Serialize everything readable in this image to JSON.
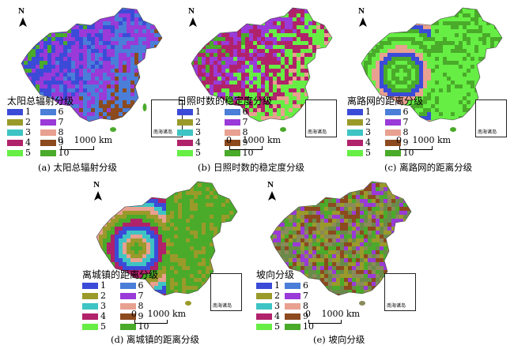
{
  "class_colors": {
    "1": "#3b4bd8",
    "2": "#9a9a2a",
    "3": "#3ec4c4",
    "4": "#b0226a",
    "5": "#66ee44",
    "6": "#4a7ed8",
    "7": "#9a3ad8",
    "8": "#e8a090",
    "9": "#8c4a1e",
    "10": "#4aaa2a"
  },
  "panels": [
    {
      "id": "a",
      "caption": "(a) 太阳总辐射分级",
      "legend_title": "太阳总辐射分级",
      "classes": [
        "1",
        "6",
        "2",
        "7",
        "3",
        "8",
        "4",
        "9",
        "5",
        "10"
      ],
      "north_label": "N",
      "scale_zero": "0",
      "scale_label": "1000 km",
      "inset_label": "南海诸岛",
      "palette": [
        "#66ee44",
        "#4aaa2a",
        "#3b4bd8",
        "#9a3ad8",
        "#4a7ed8",
        "#8c4a1e"
      ]
    },
    {
      "id": "b",
      "caption": "(b) 日照时数的稳定度分级",
      "legend_title": "日照时数的稳定度分级",
      "classes": [
        "1",
        "6",
        "2",
        "7",
        "3",
        "8",
        "4",
        "9",
        "5",
        "10"
      ],
      "north_label": "N",
      "scale_zero": "0",
      "scale_label": "1000 km",
      "inset_label": "南海诸岛",
      "palette": [
        "#8c4a1e",
        "#4aaa2a",
        "#9a3ad8",
        "#b0226a",
        "#66ee44",
        "#e8a090"
      ]
    },
    {
      "id": "c",
      "caption": "(c) 离路网的距离分级",
      "legend_title": "离路网的距离分级",
      "classes": [
        "1",
        "6",
        "2",
        "7",
        "3",
        "8",
        "4",
        "9",
        "5",
        "10"
      ],
      "north_label": "N",
      "scale_zero": "0",
      "scale_label": "1000 km",
      "inset_label": "南海诸岛",
      "palette": [
        "#66ee44",
        "#4aaa2a",
        "#66ee44",
        "#4aaa2a",
        "#3b4bd8",
        "#e8a090"
      ]
    },
    {
      "id": "d",
      "caption": "(d) 离城镇的距离分级",
      "legend_title": "离城镇的距离分级",
      "classes": [
        "1",
        "6",
        "2",
        "7",
        "3",
        "8",
        "4",
        "9",
        "5",
        "10"
      ],
      "north_label": "N",
      "scale_zero": "0",
      "scale_label": "1000 km",
      "inset_label": "南海诸岛",
      "palette": [
        "#4aaa2a",
        "#9a9a2a",
        "#e8a090",
        "#3ec4c4",
        "#3b4bd8",
        "#b0226a"
      ]
    },
    {
      "id": "e",
      "caption": "(e) 坡向分级",
      "legend_title": "坡向分级",
      "classes": [
        "1",
        "6",
        "2",
        "7",
        "3",
        "8",
        "4",
        "9",
        "5",
        "10"
      ],
      "north_label": "N",
      "scale_zero": "0",
      "scale_label": "1000 km",
      "inset_label": "南海诸岛",
      "palette": [
        "#9a9a2a",
        "#8a8a5a",
        "#4aaa2a",
        "#9a3ad8",
        "#8c4a1e",
        "#6a8a4a"
      ]
    }
  ]
}
